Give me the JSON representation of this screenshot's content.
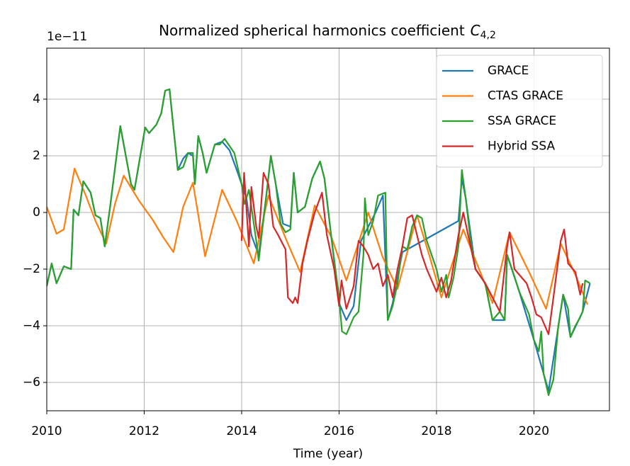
{
  "chart_data": {
    "type": "line",
    "title": "Normalized spherical harmonics coefficient",
    "title_symbol": "C",
    "title_subscript": "4,2",
    "offset_label": "1e−11",
    "xlabel": "Time (year)",
    "xlim": [
      2010,
      2021.55
    ],
    "ylim": [
      -7,
      5.8
    ],
    "xticks": [
      2010,
      2012,
      2014,
      2016,
      2018,
      2020
    ],
    "yticks": [
      {
        "value": -6,
        "label": "−6"
      },
      {
        "value": -4,
        "label": "−4"
      },
      {
        "value": -2,
        "label": "−2"
      },
      0,
      2,
      4
    ],
    "grid": true,
    "legend": "upper right",
    "series": [
      {
        "name": "GRACE",
        "color": "#1f77b4",
        "x": [
          2010.0,
          2010.1,
          2010.2,
          2010.35,
          2010.5,
          2010.55,
          2010.65,
          2010.75,
          2010.9,
          2011.0,
          2011.1,
          2011.19,
          2011.3,
          2011.51,
          2011.73,
          2011.8,
          2012.02,
          2012.1,
          2012.25,
          2012.35,
          2012.43,
          2012.52,
          2012.6,
          2012.69,
          2012.8,
          2012.9,
          2013.0,
          2013.04,
          2013.11,
          2013.2,
          2013.28,
          2013.45,
          2013.6,
          2013.75,
          2013.9,
          2014.0,
          2014.1,
          2014.2,
          2014.35,
          2014.5,
          2014.6,
          2014.7,
          2014.85,
          2015.0,
          2015.07,
          2015.15,
          2015.3,
          2015.45,
          2015.61,
          2015.7,
          2015.85,
          2016.0,
          2016.15,
          2016.3,
          2016.45,
          2016.6,
          2016.75,
          2016.9,
          2017.0,
          2017.1,
          2017.3,
          2018.45,
          2018.52,
          2018.6,
          2018.8,
          2019.0,
          2019.15,
          2019.4,
          2019.45,
          2019.7,
          2020.0,
          2020.3,
          2020.6,
          2020.75,
          2021.0,
          2021.15
        ],
        "values": [
          -2.6,
          -1.8,
          -2.5,
          -1.9,
          -2.0,
          0.1,
          -0.1,
          1.1,
          0.7,
          -0.1,
          -0.2,
          -1.2,
          0.2,
          3.05,
          1.0,
          0.8,
          3.0,
          2.8,
          3.1,
          3.5,
          4.3,
          4.35,
          3.0,
          1.5,
          1.9,
          2.1,
          2.0,
          1.0,
          2.7,
          2.1,
          1.4,
          2.4,
          2.5,
          2.2,
          1.5,
          1.0,
          0.5,
          -0.8,
          -1.5,
          0.5,
          2.0,
          1.0,
          -0.4,
          -0.5,
          1.4,
          0.0,
          0.2,
          1.2,
          1.8,
          1.2,
          -1.0,
          -3.2,
          -3.8,
          -3.3,
          -1.0,
          -0.5,
          0.0,
          0.6,
          -3.8,
          -3.2,
          -1.4,
          -0.3,
          1.2,
          0.5,
          -2.0,
          -2.5,
          -3.8,
          -3.8,
          -1.5,
          -2.8,
          -4.5,
          -6.3,
          -2.9,
          -4.4,
          -3.5,
          -2.5
        ]
      },
      {
        "name": "CTAS GRACE",
        "color": "#ff7f0e",
        "x": [
          2010.0,
          2010.2,
          2010.35,
          2010.57,
          2010.8,
          2011.0,
          2011.22,
          2011.4,
          2011.58,
          2011.9,
          2012.17,
          2012.4,
          2012.6,
          2012.8,
          2013.0,
          2013.25,
          2013.6,
          2013.9,
          2014.25,
          2014.55,
          2014.9,
          2015.2,
          2015.5,
          2015.85,
          2016.15,
          2016.6,
          2016.9,
          2017.2,
          2017.6,
          2017.85,
          2018.1,
          2018.55,
          2018.85,
          2019.15,
          2019.5,
          2019.9,
          2020.25,
          2020.55,
          2020.85,
          2021.1
        ],
        "values": [
          0.2,
          -0.75,
          -0.6,
          1.55,
          0.6,
          -0.3,
          -1.1,
          0.3,
          1.3,
          0.4,
          -0.25,
          -0.9,
          -1.4,
          0.2,
          1.05,
          -1.55,
          0.8,
          -0.3,
          -1.8,
          0.6,
          -0.9,
          -2.1,
          0.25,
          -0.9,
          -2.4,
          0.0,
          -1.6,
          -2.7,
          -0.1,
          -1.5,
          -3.0,
          -0.6,
          -1.9,
          -3.2,
          -0.7,
          -2.1,
          -3.4,
          -1.1,
          -2.2,
          -3.25
        ]
      },
      {
        "name": "SSA GRACE",
        "color": "#2ca02c",
        "x": [
          2010.0,
          2010.1,
          2010.2,
          2010.35,
          2010.5,
          2010.55,
          2010.65,
          2010.75,
          2010.9,
          2011.0,
          2011.1,
          2011.19,
          2011.3,
          2011.51,
          2011.73,
          2011.8,
          2012.02,
          2012.1,
          2012.25,
          2012.35,
          2012.43,
          2012.52,
          2012.6,
          2012.69,
          2012.8,
          2012.9,
          2013.0,
          2013.04,
          2013.11,
          2013.2,
          2013.28,
          2013.45,
          2013.55,
          2013.65,
          2013.85,
          2014.0,
          2014.06,
          2014.15,
          2014.3,
          2014.35,
          2014.5,
          2014.6,
          2014.7,
          2014.8,
          2014.9,
          2015.0,
          2015.07,
          2015.15,
          2015.3,
          2015.45,
          2015.61,
          2015.7,
          2015.85,
          2016.0,
          2016.06,
          2016.15,
          2016.3,
          2016.4,
          2016.5,
          2016.53,
          2016.6,
          2016.7,
          2016.8,
          2016.95,
          2017.0,
          2017.1,
          2017.2,
          2017.3,
          2017.4,
          2017.5,
          2017.6,
          2017.7,
          2017.8,
          2018.0,
          2018.1,
          2018.2,
          2018.25,
          2018.35,
          2018.45,
          2018.52,
          2018.6,
          2018.7,
          2018.8,
          2019.0,
          2019.15,
          2019.3,
          2019.4,
          2019.45,
          2019.55,
          2019.7,
          2019.9,
          2020.0,
          2020.1,
          2020.15,
          2020.2,
          2020.3,
          2020.4,
          2020.5,
          2020.6,
          2020.7,
          2020.75,
          2020.85,
          2020.95,
          2021.0,
          2021.05,
          2021.15
        ],
        "values": [
          -2.6,
          -1.8,
          -2.5,
          -1.9,
          -2.0,
          0.1,
          -0.1,
          1.1,
          0.7,
          -0.1,
          -0.2,
          -1.2,
          0.2,
          3.05,
          1.0,
          0.8,
          3.0,
          2.8,
          3.1,
          3.5,
          4.3,
          4.35,
          3.0,
          1.5,
          1.6,
          2.1,
          2.1,
          1.0,
          2.7,
          2.1,
          1.4,
          2.4,
          2.4,
          2.6,
          2.1,
          1.0,
          0.3,
          0.8,
          -1.0,
          -1.7,
          0.5,
          2.0,
          1.0,
          -0.4,
          -0.7,
          -0.6,
          1.4,
          0.0,
          0.2,
          1.2,
          1.8,
          1.2,
          -1.0,
          -3.0,
          -4.2,
          -4.3,
          -3.7,
          -3.5,
          -1.5,
          0.5,
          -0.8,
          -0.3,
          0.6,
          0.7,
          -3.8,
          -3.3,
          -2.5,
          -1.2,
          -1.3,
          -0.5,
          -0.1,
          -0.2,
          -1.0,
          -2.0,
          -2.8,
          -2.2,
          -3.0,
          -2.3,
          -1.2,
          1.5,
          0.5,
          -1.0,
          -2.0,
          -2.5,
          -3.8,
          -3.5,
          -3.8,
          -1.5,
          -2.0,
          -2.8,
          -3.6,
          -4.5,
          -4.9,
          -4.2,
          -5.7,
          -6.45,
          -5.9,
          -4.0,
          -2.9,
          -3.4,
          -4.4,
          -4.0,
          -3.7,
          -3.5,
          -2.4,
          -2.5
        ]
      },
      {
        "name": "Hybrid SSA",
        "color": "#d62728",
        "x": [
          2014.0,
          2014.05,
          2014.15,
          2014.2,
          2014.3,
          2014.35,
          2014.45,
          2014.55,
          2014.65,
          2014.75,
          2014.9,
          2014.95,
          2015.05,
          2015.1,
          2015.15,
          2015.25,
          2015.35,
          2015.5,
          2015.65,
          2015.75,
          2015.9,
          2016.0,
          2016.05,
          2016.15,
          2016.3,
          2016.4,
          2016.5,
          2016.6,
          2016.7,
          2016.8,
          2016.9,
          2017.0,
          2017.1,
          2017.2,
          2017.3,
          2017.4,
          2017.5,
          2017.6,
          2017.7,
          2017.8,
          2018.0,
          2018.1,
          2018.2,
          2018.3,
          2018.45,
          2018.55,
          2018.65,
          2018.8,
          2019.0,
          2019.15,
          2019.3,
          2019.45,
          2019.5,
          2019.6,
          2019.7,
          2019.85,
          2019.95,
          2020.05,
          2020.15,
          2020.3,
          2020.4,
          2020.55,
          2020.62,
          2020.7,
          2020.85,
          2020.95,
          2021.0
        ],
        "values": [
          -1.0,
          1.4,
          -1.2,
          0.9,
          -0.5,
          -0.9,
          1.4,
          1.0,
          -0.5,
          -0.8,
          -1.3,
          -3.0,
          -3.2,
          -3.0,
          -3.2,
          -1.8,
          -1.0,
          0.0,
          0.7,
          -0.8,
          -2.0,
          -3.3,
          -2.4,
          -3.4,
          -2.6,
          -1.0,
          -1.2,
          -1.5,
          -2.0,
          -1.8,
          -2.6,
          -2.2,
          -3.0,
          -2.0,
          -1.2,
          -0.2,
          -0.1,
          -0.8,
          -1.5,
          -2.0,
          -2.8,
          -2.3,
          -3.0,
          -2.4,
          -0.8,
          0.0,
          -0.8,
          -2.0,
          -2.5,
          -3.0,
          -3.5,
          -1.2,
          -0.7,
          -2.0,
          -2.2,
          -2.5,
          -3.0,
          -3.6,
          -3.7,
          -4.3,
          -3.0,
          -1.0,
          -0.6,
          -1.8,
          -2.1,
          -2.9,
          -2.5
        ]
      }
    ]
  }
}
